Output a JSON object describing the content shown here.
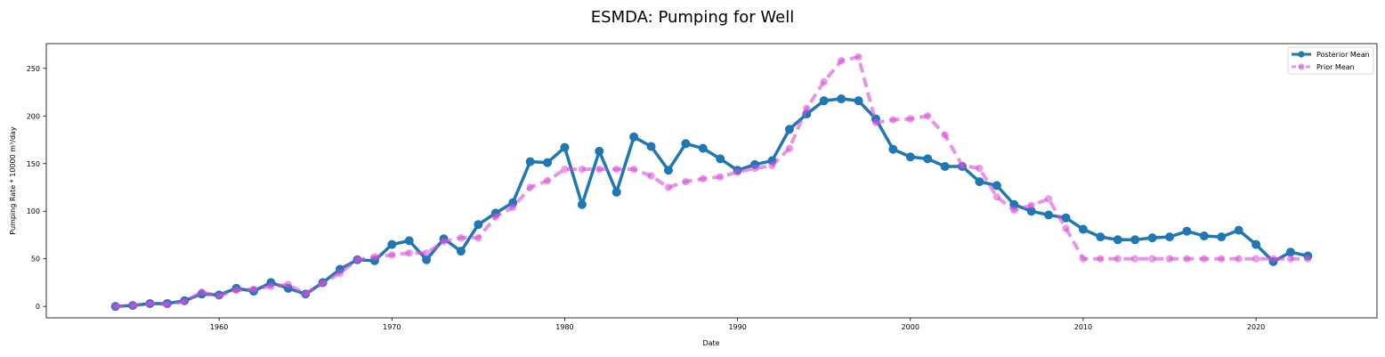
{
  "chart_data": {
    "type": "line",
    "title": "ESMDA: Pumping for Well",
    "xlabel": "Date",
    "ylabel": "Pumping Rate * 10000 m³/day",
    "xlim": [
      1950,
      2027
    ],
    "ylim": [
      -12,
      276
    ],
    "xticks": [
      "1960",
      "1970",
      "1980",
      "1990",
      "2000",
      "2010",
      "2020"
    ],
    "yticks": [
      "0",
      "50",
      "100",
      "150",
      "200",
      "250"
    ],
    "grid": false,
    "legend_position": "top-right",
    "x": [
      1954,
      1955,
      1956,
      1957,
      1958,
      1959,
      1960,
      1961,
      1962,
      1963,
      1964,
      1965,
      1966,
      1967,
      1968,
      1969,
      1970,
      1971,
      1972,
      1973,
      1974,
      1975,
      1976,
      1977,
      1978,
      1979,
      1980,
      1981,
      1982,
      1983,
      1984,
      1985,
      1986,
      1987,
      1988,
      1989,
      1990,
      1991,
      1992,
      1993,
      1994,
      1995,
      1996,
      1997,
      1998,
      1999,
      2000,
      2001,
      2002,
      2003,
      2004,
      2005,
      2006,
      2007,
      2008,
      2009,
      2010,
      2011,
      2012,
      2013,
      2014,
      2015,
      2016,
      2017,
      2018,
      2019,
      2020,
      2021,
      2022,
      2023
    ],
    "series": [
      {
        "name": "Posterior Mean",
        "color": "#1f77b4",
        "style": "solid",
        "values": [
          0,
          1,
          3,
          3,
          6,
          13,
          12,
          19,
          16,
          25,
          19,
          13,
          25,
          39,
          49,
          48,
          65,
          69,
          49,
          71,
          58,
          86,
          98,
          109,
          152,
          151,
          167,
          107,
          163,
          120,
          178,
          168,
          143,
          171,
          166,
          155,
          143,
          149,
          153,
          186,
          202,
          216,
          218,
          216,
          197,
          165,
          157,
          155,
          147,
          147,
          131,
          127,
          107,
          100,
          96,
          93,
          81,
          73,
          70,
          70,
          72,
          73,
          79,
          74,
          73,
          80,
          65,
          47,
          57,
          53
        ]
      },
      {
        "name": "Prior Mean",
        "color": "#d84fd8",
        "style": "dashed",
        "values": [
          0,
          1,
          3,
          2,
          5,
          15,
          11,
          17,
          18,
          21,
          23,
          13,
          24,
          35,
          49,
          52,
          54,
          56,
          56,
          68,
          72,
          72,
          94,
          104,
          125,
          132,
          144,
          144,
          144,
          144,
          144,
          137,
          125,
          131,
          134,
          136,
          141,
          145,
          148,
          166,
          208,
          236,
          258,
          262,
          193,
          196,
          197,
          200,
          180,
          148,
          145,
          115,
          101,
          106,
          113,
          82,
          50,
          50,
          50,
          50,
          50,
          50,
          50,
          50,
          50,
          50,
          50,
          50,
          50,
          50
        ]
      }
    ]
  }
}
